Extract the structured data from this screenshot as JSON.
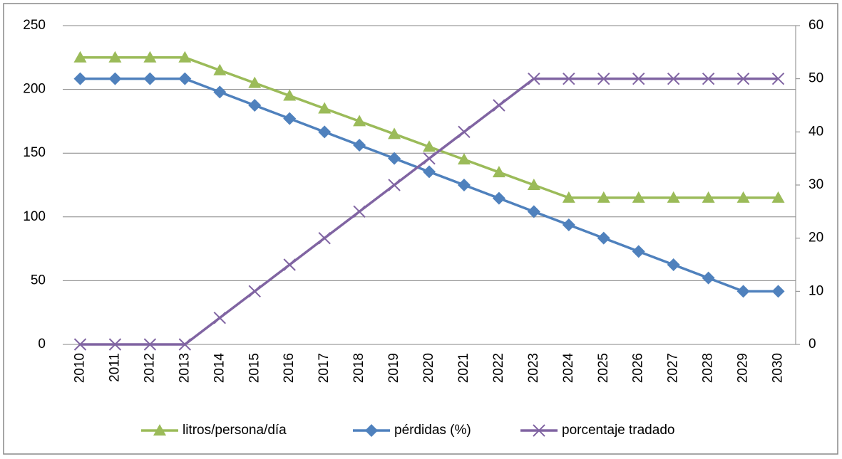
{
  "chart_data": {
    "type": "line",
    "categories": [
      "2010",
      "2011",
      "2012",
      "2013",
      "2014",
      "2015",
      "2016",
      "2017",
      "2018",
      "2019",
      "2020",
      "2021",
      "2022",
      "2023",
      "2024",
      "2025",
      "2026",
      "2027",
      "2028",
      "2029",
      "2030"
    ],
    "series": [
      {
        "name": "litros/persona/día",
        "color": "#9bbb59",
        "marker": "triangle",
        "axis": "y",
        "values": [
          225,
          225,
          225,
          225,
          215,
          205,
          195,
          185,
          175,
          165,
          155,
          145,
          135,
          125,
          115,
          115,
          115,
          115,
          115,
          115,
          115
        ]
      },
      {
        "name": "pérdidas (%)",
        "color": "#4f81bd",
        "marker": "diamond",
        "axis": "y2",
        "values": [
          50,
          50,
          50,
          50,
          47.5,
          45,
          42.5,
          40,
          37.5,
          35,
          32.5,
          30,
          27.5,
          25,
          22.5,
          20,
          17.5,
          15,
          12.5,
          10,
          10
        ]
      },
      {
        "name": "porcentaje tradado",
        "color": "#8064a2",
        "marker": "x",
        "axis": "y2",
        "values": [
          0,
          0,
          0,
          0,
          5,
          10,
          15,
          20,
          25,
          30,
          35,
          40,
          45,
          50,
          50,
          50,
          50,
          50,
          50,
          50,
          50
        ]
      }
    ],
    "ylim": [
      0,
      250
    ],
    "yticks": [
      0,
      50,
      100,
      150,
      200,
      250
    ],
    "y2lim": [
      0,
      60
    ],
    "y2ticks": [
      0,
      10,
      20,
      30,
      40,
      50,
      60
    ],
    "grid": true,
    "legend": "bottom"
  }
}
